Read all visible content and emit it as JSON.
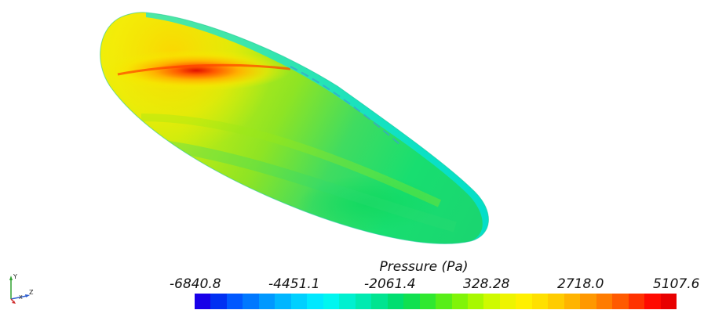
{
  "legend": {
    "title": "Pressure (Pa)",
    "ticks": [
      "-6840.8",
      "-4451.1",
      "-2061.4",
      "328.28",
      "2718.0",
      "5107.6"
    ],
    "colors": [
      "#1800e8",
      "#0030f2",
      "#0058ff",
      "#0078ff",
      "#0098ff",
      "#00b6ff",
      "#00d0ff",
      "#00e8ff",
      "#00f6f0",
      "#00f0d0",
      "#00eab0",
      "#00e490",
      "#00de70",
      "#10e050",
      "#30e830",
      "#58ee18",
      "#80f408",
      "#a8f800",
      "#cefa00",
      "#eef400",
      "#fff000",
      "#ffe000",
      "#ffcc00",
      "#ffb400",
      "#ff9800",
      "#ff7c00",
      "#ff5a00",
      "#ff3200",
      "#ff0a00",
      "#e80000"
    ]
  },
  "axes": {
    "x_label": "X",
    "y_label": "Y",
    "z_label": "Z"
  }
}
